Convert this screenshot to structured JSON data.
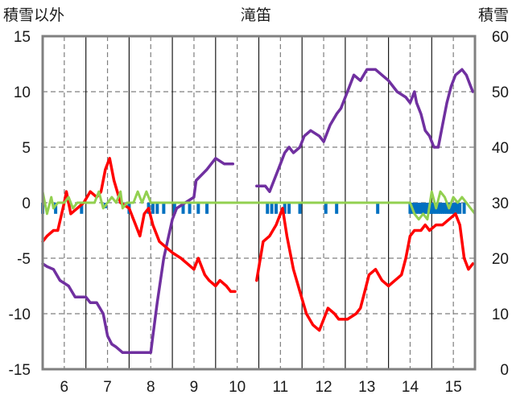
{
  "chart_data": {
    "type": "line",
    "title": "滝笛",
    "ylabel_left": "積雪以外",
    "ylabel_right": "積雪",
    "x_tick_labels": [
      "6",
      "7",
      "8",
      "9",
      "10",
      "11",
      "12",
      "13",
      "14",
      "15"
    ],
    "x_range": [
      5.5,
      15.5
    ],
    "ylim_left": [
      -15,
      15
    ],
    "ylim_right": [
      0,
      60
    ],
    "y_ticks_left": [
      -15,
      -10,
      -5,
      0,
      5,
      10,
      15
    ],
    "y_ticks_right": [
      0,
      10,
      20,
      30,
      40,
      50,
      60
    ],
    "grid": "dashed",
    "colors": {
      "temperature": "#ff0000",
      "snow_depth": "#7030a0",
      "wind": "#92d050",
      "precipitation": "#0070c0",
      "frame": "#808080"
    },
    "series": [
      {
        "id": "snow_depth",
        "color": "#7030a0",
        "axis": "right",
        "segments": [
          [
            [
              5.5,
              19
            ],
            [
              5.6,
              18.5
            ],
            [
              5.75,
              18
            ],
            [
              5.9,
              16
            ],
            [
              6.1,
              15
            ],
            [
              6.25,
              13
            ],
            [
              6.5,
              13
            ],
            [
              6.6,
              12
            ],
            [
              6.75,
              12
            ],
            [
              6.9,
              10
            ],
            [
              7.0,
              6
            ],
            [
              7.1,
              4.5
            ],
            [
              7.2,
              4
            ],
            [
              7.35,
              3
            ],
            [
              8.0,
              3
            ],
            [
              8.05,
              6
            ],
            [
              8.15,
              12
            ],
            [
              8.3,
              20
            ],
            [
              8.5,
              27
            ],
            [
              8.6,
              29
            ],
            [
              8.8,
              30
            ],
            [
              9.0,
              31
            ],
            [
              9.05,
              34
            ],
            [
              9.3,
              36
            ],
            [
              9.5,
              38
            ],
            [
              9.7,
              37
            ],
            [
              9.9,
              37
            ]
          ],
          [
            [
              10.45,
              33
            ],
            [
              10.65,
              33
            ],
            [
              10.75,
              32
            ],
            [
              10.9,
              35
            ],
            [
              11.0,
              37
            ],
            [
              11.1,
              39
            ],
            [
              11.2,
              40
            ],
            [
              11.3,
              39
            ],
            [
              11.45,
              40
            ],
            [
              11.55,
              42
            ],
            [
              11.7,
              43
            ],
            [
              11.9,
              42
            ],
            [
              12.0,
              41
            ],
            [
              12.15,
              44
            ],
            [
              12.3,
              46
            ],
            [
              12.4,
              47
            ],
            [
              12.55,
              50
            ],
            [
              12.7,
              53
            ],
            [
              12.85,
              52
            ],
            [
              13.0,
              54
            ],
            [
              13.2,
              54
            ],
            [
              13.35,
              53
            ],
            [
              13.5,
              52
            ],
            [
              13.7,
              50
            ],
            [
              13.9,
              49
            ],
            [
              14.0,
              48
            ],
            [
              14.1,
              50
            ],
            [
              14.15,
              48
            ],
            [
              14.25,
              46
            ],
            [
              14.35,
              43
            ],
            [
              14.45,
              42
            ],
            [
              14.55,
              40
            ],
            [
              14.65,
              40
            ],
            [
              14.75,
              44
            ],
            [
              14.85,
              48
            ],
            [
              14.95,
              51
            ],
            [
              15.05,
              53
            ],
            [
              15.2,
              54
            ],
            [
              15.3,
              53
            ],
            [
              15.4,
              51
            ],
            [
              15.45,
              50
            ]
          ]
        ]
      },
      {
        "id": "temperature",
        "color": "#ff0000",
        "axis": "left",
        "segments": [
          [
            [
              5.5,
              -3.5
            ],
            [
              5.6,
              -3
            ],
            [
              5.75,
              -2.5
            ],
            [
              5.85,
              -2.5
            ],
            [
              6.0,
              0
            ],
            [
              6.05,
              1
            ],
            [
              6.15,
              -1
            ],
            [
              6.3,
              -0.5
            ],
            [
              6.45,
              0
            ],
            [
              6.6,
              1
            ],
            [
              6.75,
              0.5
            ],
            [
              6.85,
              1
            ],
            [
              6.95,
              3
            ],
            [
              7.05,
              4
            ],
            [
              7.15,
              2
            ],
            [
              7.3,
              0
            ],
            [
              7.5,
              -0.5
            ],
            [
              7.65,
              -2
            ],
            [
              7.75,
              -3
            ],
            [
              7.85,
              -1
            ],
            [
              7.95,
              -0.5
            ],
            [
              8.05,
              -2
            ],
            [
              8.2,
              -3.5
            ],
            [
              8.35,
              -4
            ],
            [
              8.5,
              -4.5
            ],
            [
              8.7,
              -5
            ],
            [
              8.85,
              -5.5
            ],
            [
              9.0,
              -6
            ],
            [
              9.1,
              -5
            ],
            [
              9.25,
              -6.5
            ],
            [
              9.35,
              -7
            ],
            [
              9.5,
              -7.5
            ],
            [
              9.6,
              -7
            ],
            [
              9.75,
              -7.5
            ],
            [
              9.85,
              -8
            ],
            [
              9.95,
              -8
            ]
          ],
          [
            [
              10.45,
              -7
            ],
            [
              10.6,
              -3.5
            ],
            [
              10.75,
              -3
            ],
            [
              10.9,
              -2
            ],
            [
              11.0,
              -1
            ],
            [
              11.05,
              -0.5
            ],
            [
              11.15,
              -3
            ],
            [
              11.3,
              -6
            ],
            [
              11.45,
              -8
            ],
            [
              11.6,
              -10
            ],
            [
              11.75,
              -11
            ],
            [
              11.9,
              -11.5
            ],
            [
              12.0,
              -10.5
            ],
            [
              12.1,
              -9.5
            ],
            [
              12.25,
              -10
            ],
            [
              12.35,
              -10.5
            ],
            [
              12.55,
              -10.5
            ],
            [
              12.75,
              -10
            ],
            [
              12.85,
              -9.5
            ],
            [
              12.95,
              -8
            ],
            [
              13.05,
              -6.5
            ],
            [
              13.2,
              -6
            ],
            [
              13.35,
              -7
            ],
            [
              13.5,
              -7.5
            ],
            [
              13.65,
              -7
            ],
            [
              13.8,
              -6.5
            ],
            [
              13.9,
              -5
            ],
            [
              14.0,
              -3
            ],
            [
              14.1,
              -2.5
            ],
            [
              14.25,
              -2.5
            ],
            [
              14.35,
              -2
            ],
            [
              14.45,
              -2.5
            ],
            [
              14.6,
              -2
            ],
            [
              14.75,
              -2
            ],
            [
              14.9,
              -1.5
            ],
            [
              15.05,
              -1
            ],
            [
              15.15,
              -2
            ],
            [
              15.25,
              -5
            ],
            [
              15.35,
              -6
            ],
            [
              15.45,
              -5.5
            ]
          ]
        ]
      },
      {
        "id": "wind",
        "color": "#92d050",
        "axis": "left",
        "segments": [
          [
            [
              5.5,
              1
            ],
            [
              5.6,
              -1
            ],
            [
              5.7,
              0.5
            ],
            [
              5.75,
              -0.5
            ],
            [
              5.85,
              0
            ],
            [
              6.0,
              0
            ],
            [
              6.1,
              0.5
            ],
            [
              6.2,
              -0.5
            ],
            [
              6.3,
              0
            ],
            [
              6.7,
              0
            ],
            [
              6.8,
              1
            ],
            [
              6.9,
              -0.5
            ],
            [
              7.0,
              0
            ],
            [
              7.1,
              0.5
            ],
            [
              7.2,
              0
            ],
            [
              7.3,
              1
            ],
            [
              7.35,
              -0.5
            ],
            [
              7.45,
              0
            ],
            [
              7.6,
              0
            ],
            [
              7.7,
              1
            ],
            [
              7.8,
              0
            ],
            [
              7.9,
              1
            ],
            [
              8.0,
              0
            ],
            [
              10.45,
              0
            ],
            [
              14.0,
              0
            ],
            [
              14.1,
              -1
            ],
            [
              14.2,
              -1.5
            ],
            [
              14.3,
              -1
            ],
            [
              14.4,
              -1.5
            ],
            [
              14.5,
              1
            ],
            [
              14.6,
              -0.5
            ],
            [
              14.7,
              1
            ],
            [
              14.8,
              0.5
            ],
            [
              14.9,
              -0.5
            ],
            [
              15.0,
              0.5
            ],
            [
              15.1,
              0
            ],
            [
              15.2,
              0.5
            ],
            [
              15.3,
              0
            ],
            [
              15.4,
              -0.5
            ],
            [
              15.5,
              -1
            ]
          ]
        ]
      }
    ],
    "precipitation": {
      "color": "#0070c0",
      "axis": "left",
      "bars": [
        [
          5.5,
          -1
        ],
        [
          5.8,
          -1
        ],
        [
          6.4,
          -1
        ],
        [
          6.95,
          -0.5
        ],
        [
          7.5,
          -1
        ],
        [
          7.95,
          -1
        ],
        [
          8.05,
          -1
        ],
        [
          8.15,
          -1
        ],
        [
          8.3,
          -1
        ],
        [
          8.55,
          -1
        ],
        [
          8.75,
          -1
        ],
        [
          8.9,
          -1
        ],
        [
          9.1,
          -1
        ],
        [
          9.3,
          -1
        ],
        [
          10.7,
          -1
        ],
        [
          10.8,
          -1
        ],
        [
          10.9,
          -1
        ],
        [
          11.1,
          -1
        ],
        [
          11.2,
          -1
        ],
        [
          11.45,
          -1
        ],
        [
          12.05,
          -1
        ],
        [
          12.3,
          -1
        ],
        [
          13.25,
          -1
        ],
        [
          14.0,
          -1
        ],
        [
          14.05,
          -1
        ],
        [
          14.1,
          -1
        ],
        [
          14.15,
          -1
        ],
        [
          14.2,
          -1
        ],
        [
          14.25,
          -1
        ],
        [
          14.3,
          -1
        ],
        [
          14.35,
          -1
        ],
        [
          14.4,
          -1
        ],
        [
          14.45,
          -1
        ],
        [
          14.5,
          -1
        ],
        [
          14.55,
          -1
        ],
        [
          14.6,
          -1
        ],
        [
          14.65,
          -1
        ],
        [
          14.7,
          -1
        ],
        [
          14.75,
          -1
        ],
        [
          14.8,
          -1
        ],
        [
          14.85,
          -1
        ],
        [
          14.9,
          -1
        ],
        [
          14.95,
          -1
        ],
        [
          15.0,
          -1
        ],
        [
          15.05,
          -1
        ],
        [
          15.1,
          -1
        ],
        [
          15.15,
          -1
        ],
        [
          15.25,
          -1
        ]
      ]
    },
    "day_dividers": [
      5.5,
      6.5,
      7.5,
      8.5,
      9.5,
      10.5,
      11.5,
      12.5,
      13.5,
      14.5
    ]
  }
}
